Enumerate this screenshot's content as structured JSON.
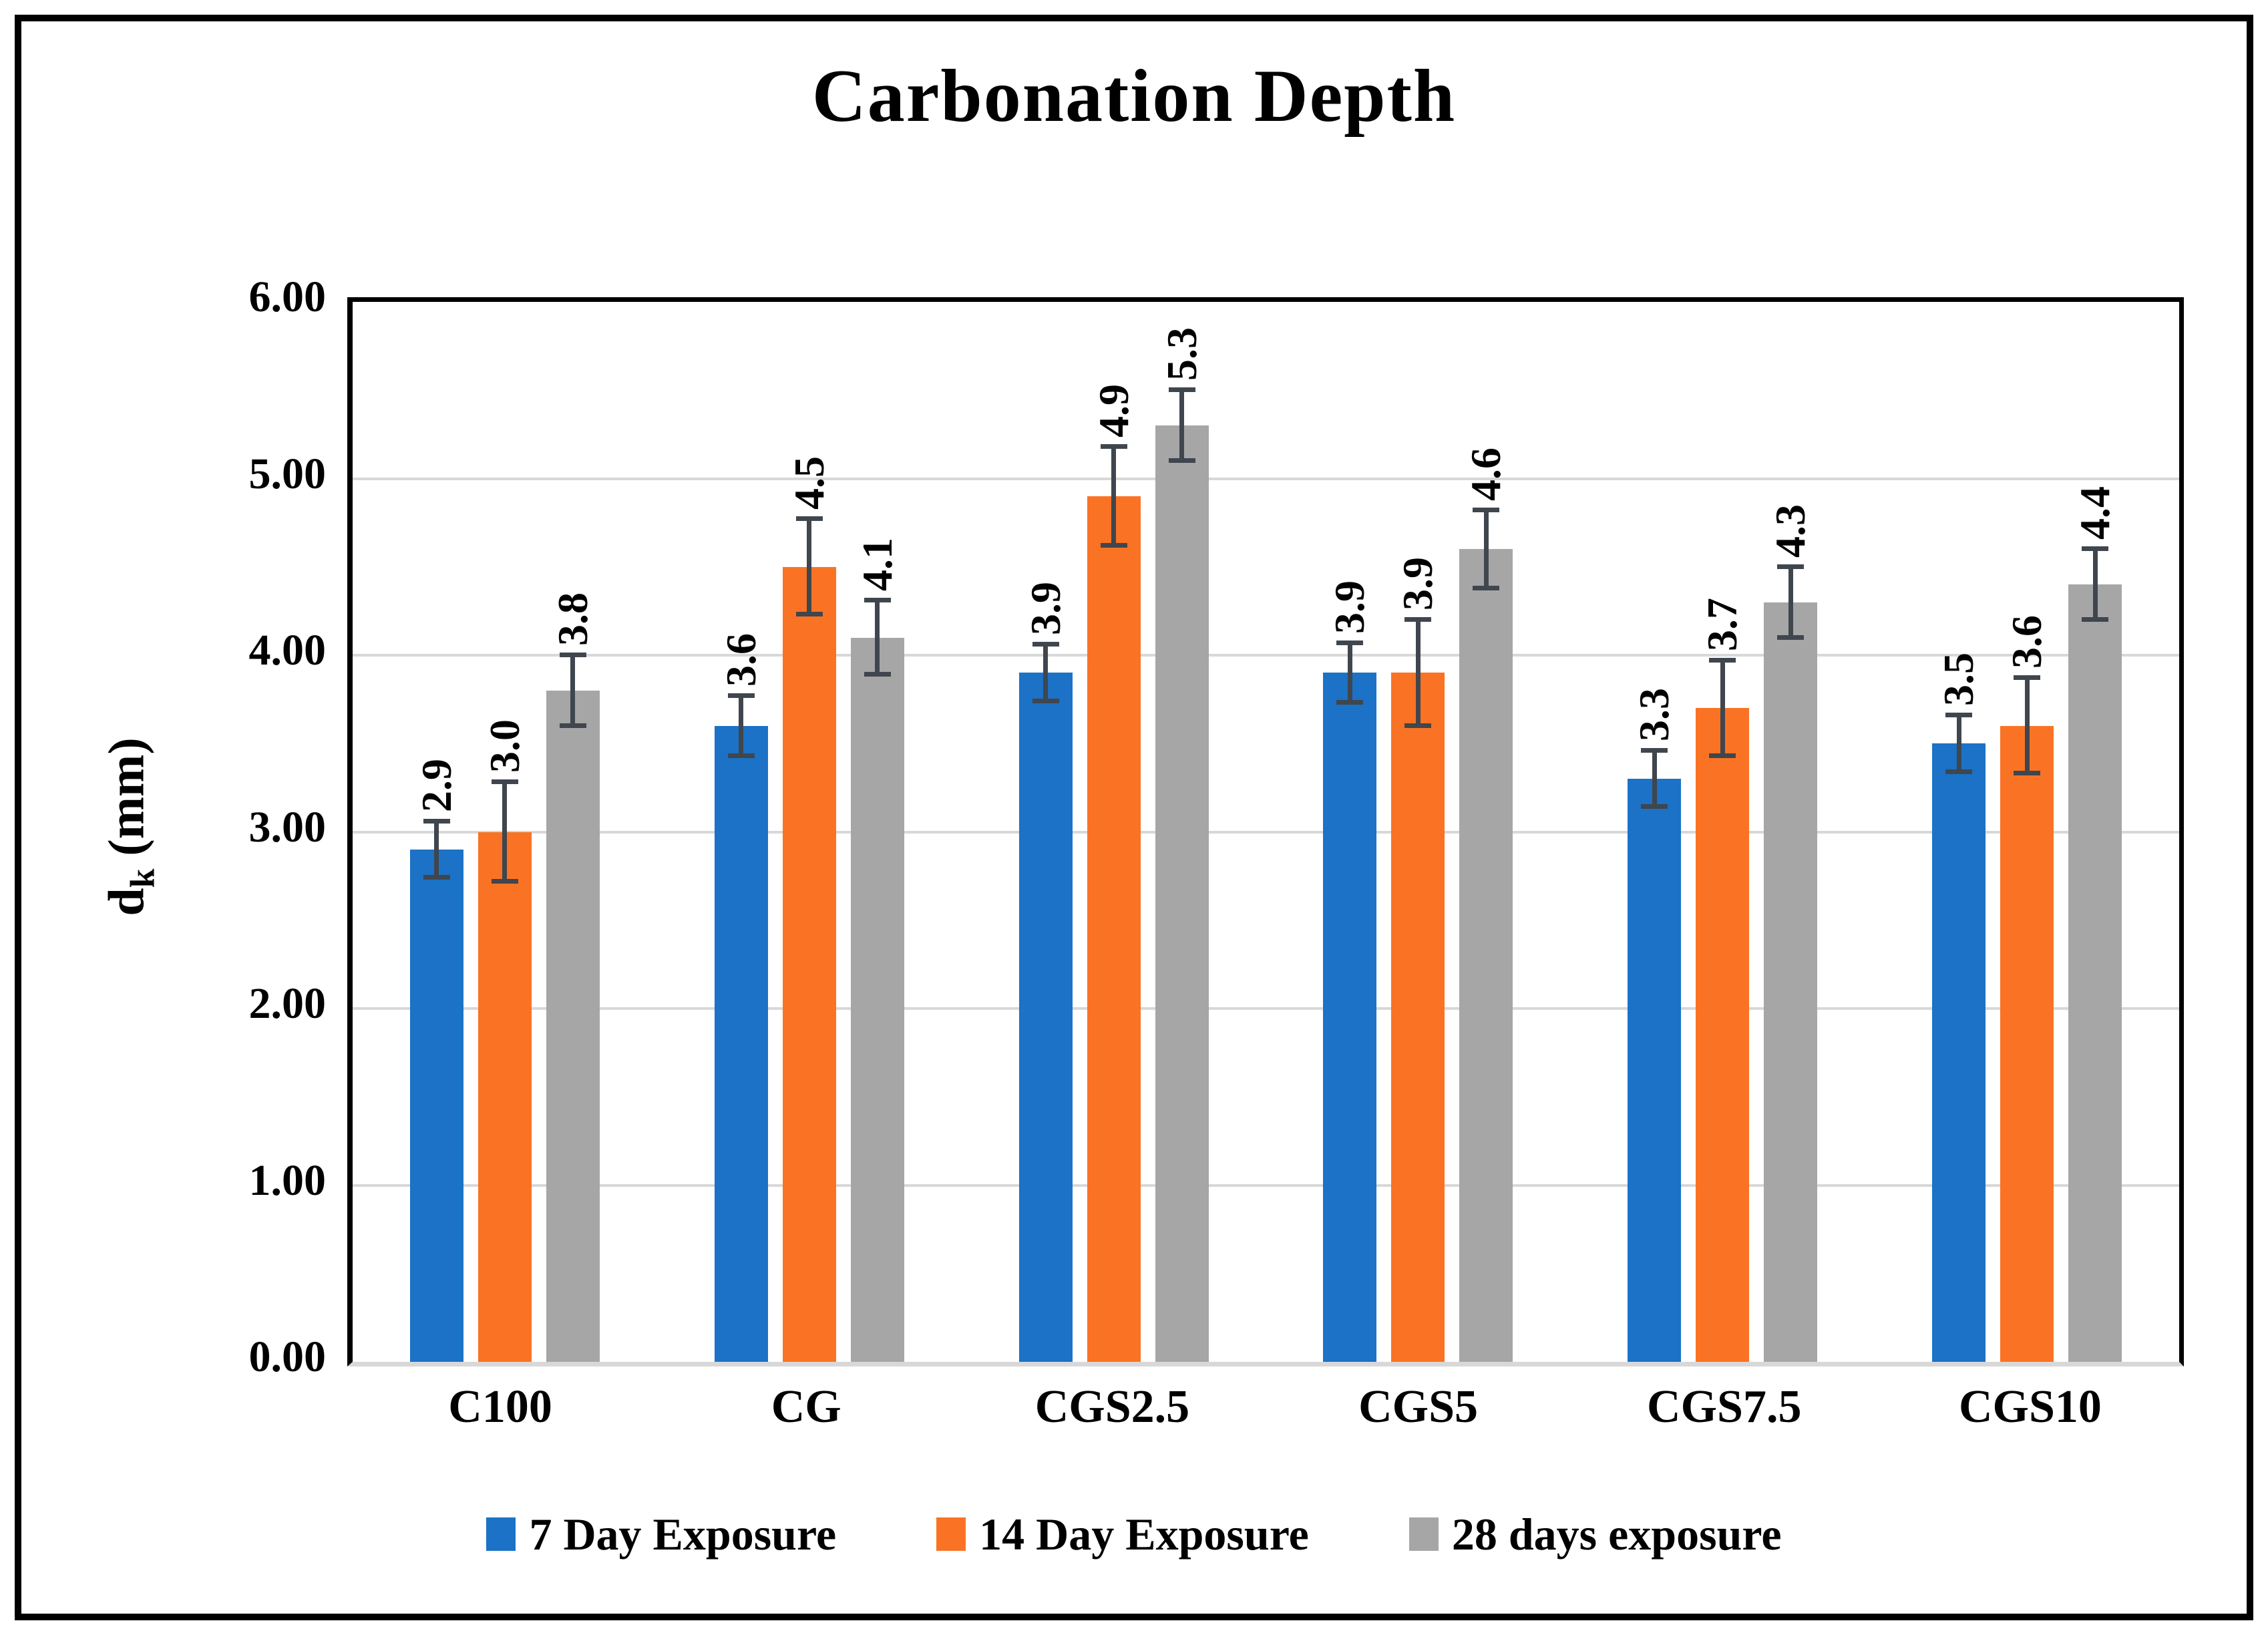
{
  "figure": {
    "title": "Carbonation Depth"
  },
  "y_axis": {
    "label_main": "d",
    "label_sub": "k",
    "label_unit": " (mm)",
    "ticks": [
      {
        "label": "6.00",
        "value": 6
      },
      {
        "label": "5.00",
        "value": 5
      },
      {
        "label": "4.00",
        "value": 4
      },
      {
        "label": "3.00",
        "value": 3
      },
      {
        "label": "2.00",
        "value": 2
      },
      {
        "label": "1.00",
        "value": 1
      },
      {
        "label": "0.00",
        "value": 0
      }
    ]
  },
  "chart_data": {
    "type": "bar",
    "title": "Carbonation Depth",
    "categories": [
      "C100",
      "CG",
      "CGS2.5",
      "CGS5",
      "CGS7.5",
      "CGS10"
    ],
    "series": [
      {
        "name": "7 Day Exposure",
        "color": "#1B72C6",
        "values": [
          2.9,
          3.6,
          3.9,
          3.9,
          3.3,
          3.5
        ],
        "labels": [
          "2.9",
          "3.6",
          "3.9",
          "3.9",
          "3.3",
          "3.5"
        ],
        "errors": [
          0.16,
          0.17,
          0.16,
          0.17,
          0.16,
          0.16
        ]
      },
      {
        "name": "14 Day Exposure",
        "color": "#FA7324",
        "values": [
          3.0,
          4.5,
          4.9,
          3.9,
          3.7,
          3.6
        ],
        "labels": [
          "3.0",
          "4.5",
          "4.9",
          "3.9",
          "3.7",
          "3.6"
        ],
        "errors": [
          0.28,
          0.27,
          0.28,
          0.3,
          0.27,
          0.27
        ]
      },
      {
        "name": "28 days exposure",
        "color": "#A6A6A6",
        "values": [
          3.8,
          4.1,
          5.3,
          4.6,
          4.3,
          4.4
        ],
        "labels": [
          "3.8",
          "4.1",
          "5.3",
          "4.6",
          "4.3",
          "4.4"
        ],
        "errors": [
          0.2,
          0.21,
          0.2,
          0.22,
          0.2,
          0.2
        ]
      }
    ],
    "xlabel": "",
    "ylabel": "dk (mm)",
    "ylim": [
      0,
      6
    ],
    "ytick_step": 1,
    "grid": true,
    "error_bars": true,
    "data_label_rotation": 90,
    "legend_position": "bottom"
  },
  "colors": {
    "gridline": "#D8D8D8",
    "error_bar": "#3F464E",
    "axis": "#000000",
    "background": "#FFFFFF"
  }
}
